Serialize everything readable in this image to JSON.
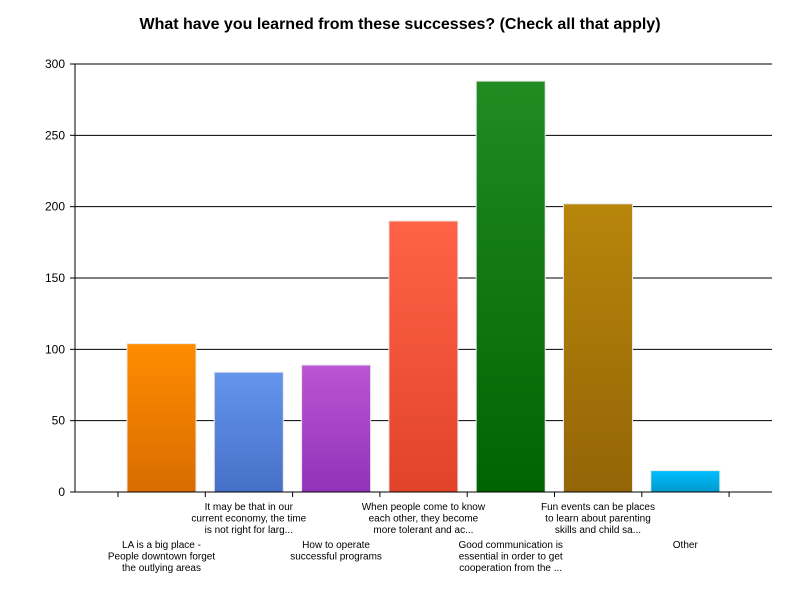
{
  "chart_data": {
    "type": "bar",
    "title": "What have you learned from these successes? (Check all that apply)",
    "xlabel": "",
    "ylabel": "",
    "ylim": [
      0,
      300
    ],
    "yticks": [
      0,
      50,
      100,
      150,
      200,
      250,
      300
    ],
    "grid": "horizontal",
    "categories": [
      [
        "LA is a big place -",
        "People downtown forget",
        "the outlying areas"
      ],
      [
        "It may be that in our",
        "current economy, the time",
        "is not right for larg..."
      ],
      [
        "How to operate",
        "successful programs"
      ],
      [
        "When people come to know",
        "each other, they become",
        "more tolerant and ac..."
      ],
      [
        "Good communication is",
        "essential in order to get",
        "cooperation from the ..."
      ],
      [
        "Fun events can be places",
        "to learn about parenting",
        "skills and child sa..."
      ],
      [
        "Other"
      ]
    ],
    "values": [
      104,
      84,
      89,
      190,
      288,
      202,
      15
    ],
    "colors": [
      [
        "#ff8c00",
        "#d96c00"
      ],
      [
        "#6495ed",
        "#4670c8"
      ],
      [
        "#ba55d3",
        "#9232b8"
      ],
      [
        "#ff6347",
        "#e0432a"
      ],
      [
        "#228b22",
        "#006400"
      ],
      [
        "#b8860b",
        "#936506"
      ],
      [
        "#00bfff",
        "#009acd"
      ]
    ]
  }
}
